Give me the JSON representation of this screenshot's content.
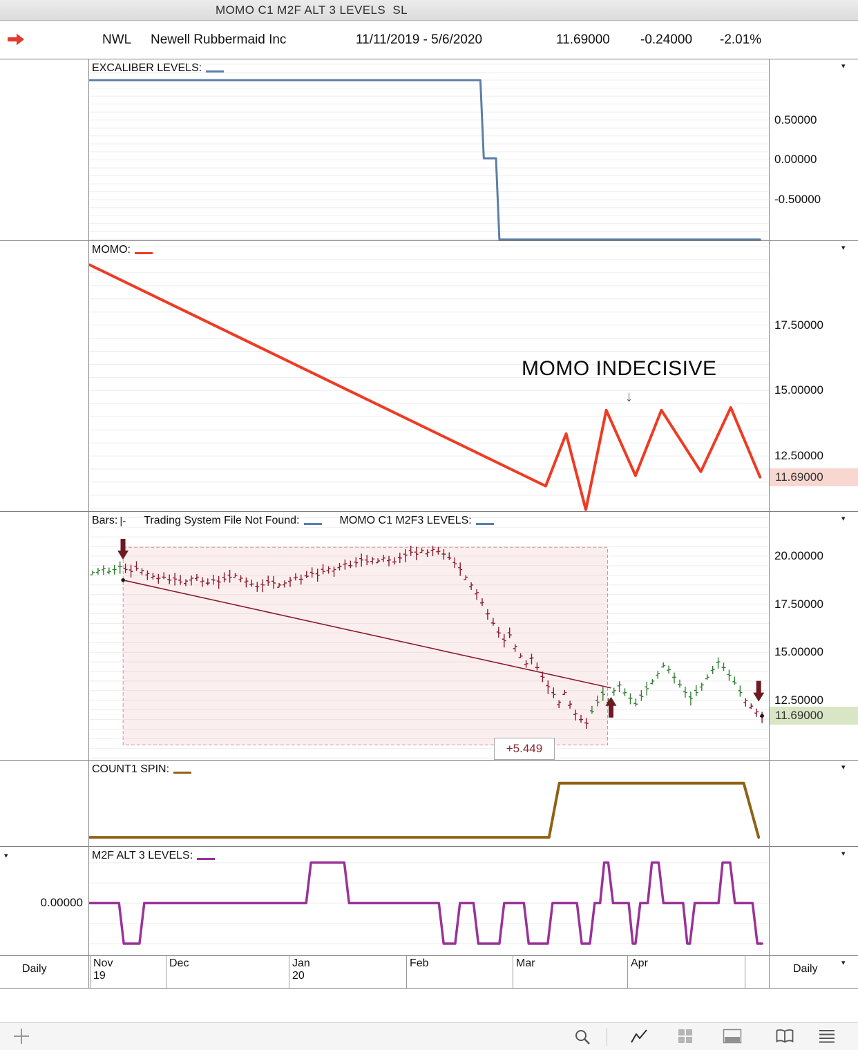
{
  "window": {
    "title": "MOMO C1 M2F ALT 3 LEVELS  SL"
  },
  "header": {
    "symbol": "NWL",
    "company": "Newell Rubbermaid Inc",
    "date_range": "11/11/2019 - 5/6/2020",
    "last": "11.69000",
    "change": "-0.24000",
    "change_pct": "-2.01%"
  },
  "panels": [
    {
      "name": "excaliber-levels",
      "segments": [
        {
          "text": "EXCALIBER LEVELS:",
          "swatch": "#5b7fa8"
        }
      ]
    },
    {
      "name": "momo",
      "segments": [
        {
          "text": "MOMO:",
          "swatch": "#ee3b24"
        }
      ],
      "annotation": {
        "text": "MOMO INDECISIVE",
        "arrow": "↓"
      }
    },
    {
      "name": "bars",
      "segments": [
        {
          "text": "Bars:",
          "glyph": "|-"
        },
        {
          "text": "Trading System File Not Found:",
          "swatch": "#5b7fa8"
        },
        {
          "text": "MOMO C1 M2F3 LEVELS:",
          "swatch": "#5b7fa8"
        }
      ],
      "gain_label": "+5.449"
    },
    {
      "name": "count1-spin",
      "segments": [
        {
          "text": "COUNT1 SPIN:",
          "swatch": "#8f6315"
        }
      ]
    },
    {
      "name": "m2f-alt3-levels",
      "segments": [
        {
          "text": "M2F ALT 3 LEVELS:",
          "swatch": "#993399"
        }
      ]
    }
  ],
  "chart_data": [
    {
      "type": "line",
      "name": "excaliber-levels",
      "color": "#5b7fa8",
      "stroke": 3,
      "ylim": [
        -1.01,
        1.26
      ],
      "grid_step": 0.1,
      "yticks": [
        {
          "v": 0.5,
          "label": "0.50000"
        },
        {
          "v": 0.0,
          "label": "0.00000"
        },
        {
          "v": -0.5,
          "label": "-0.50000"
        }
      ],
      "points": [
        [
          0.002,
          1.0
        ],
        [
          0.576,
          1.0
        ],
        [
          0.581,
          0.02
        ],
        [
          0.599,
          0.02
        ],
        [
          0.604,
          -1.0
        ],
        [
          0.987,
          -1.0
        ]
      ]
    },
    {
      "type": "line",
      "name": "momo",
      "color": "#ee3b24",
      "stroke": 4,
      "ylim": [
        10.39,
        20.71
      ],
      "grid_step": 0.5,
      "yticks": [
        {
          "v": 17.5,
          "label": "17.50000"
        },
        {
          "v": 15.0,
          "label": "15.00000"
        },
        {
          "v": 12.5,
          "label": "12.50000"
        }
      ],
      "badge": {
        "v": 11.69,
        "label": "11.69000",
        "bg": "#f8d7d0"
      },
      "points": [
        [
          0.002,
          19.8
        ],
        [
          0.672,
          11.35
        ],
        [
          0.702,
          13.35
        ],
        [
          0.731,
          10.45
        ],
        [
          0.761,
          14.25
        ],
        [
          0.804,
          11.75
        ],
        [
          0.842,
          14.25
        ],
        [
          0.9,
          11.9
        ],
        [
          0.944,
          14.35
        ],
        [
          0.987,
          11.69
        ]
      ]
    },
    {
      "type": "bars",
      "name": "price-bars",
      "ylim": [
        9.4,
        22.3
      ],
      "grid_step": 0.5,
      "yticks": [
        {
          "v": 20.0,
          "label": "20.00000"
        },
        {
          "v": 17.5,
          "label": "17.50000"
        },
        {
          "v": 15.0,
          "label": "15.00000"
        },
        {
          "v": 12.5,
          "label": "12.50000"
        }
      ],
      "badge": {
        "v": 11.69,
        "label": "11.69000",
        "bg": "#d9e6c5"
      },
      "up_color": "#2f7d32",
      "down_color": "#8c1b2c",
      "phases": [
        {
          "from": 0,
          "c": "up"
        },
        {
          "from": 6,
          "c": "down"
        },
        {
          "from": 91,
          "c": "up"
        },
        {
          "from": 119,
          "c": "down"
        }
      ],
      "closes": [
        19.15,
        19.25,
        19.35,
        19.2,
        19.3,
        19.45,
        19.3,
        19.2,
        19.35,
        19.25,
        19.1,
        18.95,
        18.85,
        18.9,
        18.75,
        18.8,
        18.65,
        18.7,
        18.85,
        18.9,
        18.7,
        18.6,
        18.75,
        18.65,
        18.8,
        18.9,
        19.0,
        18.85,
        18.7,
        18.55,
        18.4,
        18.5,
        18.65,
        18.6,
        18.5,
        18.6,
        18.75,
        18.9,
        18.8,
        18.95,
        19.1,
        19.0,
        19.2,
        19.35,
        19.3,
        19.45,
        19.6,
        19.5,
        19.65,
        19.8,
        19.7,
        19.85,
        19.75,
        19.9,
        19.8,
        19.7,
        19.9,
        20.05,
        20.2,
        20.1,
        20.3,
        20.2,
        20.35,
        20.25,
        20.1,
        19.9,
        19.6,
        19.3,
        18.9,
        18.5,
        18.1,
        17.6,
        17.0,
        16.5,
        16.0,
        15.6,
        15.9,
        15.3,
        14.8,
        14.4,
        14.7,
        14.2,
        13.7,
        13.2,
        12.8,
        12.4,
        12.9,
        12.3,
        11.8,
        11.5,
        11.3,
        11.9,
        12.4,
        12.8,
        12.5,
        13.0,
        13.3,
        12.9,
        12.6,
        12.3,
        12.7,
        13.1,
        13.5,
        13.9,
        14.3,
        14.1,
        13.7,
        13.3,
        12.9,
        12.6,
        12.9,
        13.3,
        13.7,
        14.1,
        14.5,
        14.2,
        13.8,
        13.4,
        12.9,
        12.5,
        12.2,
        11.9,
        11.69
      ],
      "region": {
        "x1": 0.051,
        "x2": 0.763,
        "v1": 20.46,
        "v2": 10.18
      },
      "trendline": {
        "x1": 0.051,
        "v1": 18.75,
        "x2": 0.768,
        "v2": 13.14
      },
      "arrows": [
        {
          "dir": "down",
          "x": 0.0508,
          "v": 19.82
        },
        {
          "dir": "up",
          "x": 0.768,
          "v": 12.68
        },
        {
          "dir": "down",
          "x": 0.985,
          "v": 12.43
        }
      ],
      "last_dot": true
    },
    {
      "type": "line",
      "name": "count1-spin",
      "color": "#8f6315",
      "stroke": 4,
      "ylim": [
        -0.165,
        1.418
      ],
      "points": [
        [
          0.002,
          0
        ],
        [
          0.677,
          0
        ],
        [
          0.692,
          1
        ],
        [
          0.963,
          1
        ],
        [
          0.985,
          0
        ]
      ]
    },
    {
      "type": "line",
      "name": "m2f-alt3-levels",
      "color": "#993399",
      "stroke": 3.5,
      "ylim": [
        -1.29,
        1.39
      ],
      "grid_step": 0.5,
      "left_tick": {
        "v": 0,
        "label": "0.00000"
      },
      "points": [
        [
          0.002,
          0
        ],
        [
          0.045,
          0
        ],
        [
          0.052,
          -1
        ],
        [
          0.075,
          -1
        ],
        [
          0.082,
          0
        ],
        [
          0.32,
          0
        ],
        [
          0.327,
          1
        ],
        [
          0.376,
          1
        ],
        [
          0.383,
          0
        ],
        [
          0.515,
          0
        ],
        [
          0.522,
          -1
        ],
        [
          0.539,
          -1
        ],
        [
          0.546,
          0
        ],
        [
          0.566,
          0
        ],
        [
          0.573,
          -1
        ],
        [
          0.604,
          -1
        ],
        [
          0.611,
          0
        ],
        [
          0.64,
          0
        ],
        [
          0.647,
          -1
        ],
        [
          0.675,
          -1
        ],
        [
          0.682,
          0
        ],
        [
          0.718,
          0
        ],
        [
          0.725,
          -1
        ],
        [
          0.737,
          -1
        ],
        [
          0.744,
          0
        ],
        [
          0.752,
          0
        ],
        [
          0.758,
          1
        ],
        [
          0.764,
          1
        ],
        [
          0.771,
          0
        ],
        [
          0.794,
          0
        ],
        [
          0.8,
          -1
        ],
        [
          0.804,
          -1
        ],
        [
          0.811,
          0
        ],
        [
          0.822,
          0
        ],
        [
          0.828,
          1
        ],
        [
          0.838,
          1
        ],
        [
          0.845,
          0
        ],
        [
          0.874,
          0
        ],
        [
          0.88,
          -1
        ],
        [
          0.884,
          -1
        ],
        [
          0.891,
          0
        ],
        [
          0.926,
          0
        ],
        [
          0.932,
          1
        ],
        [
          0.943,
          1
        ],
        [
          0.95,
          0
        ],
        [
          0.976,
          0
        ],
        [
          0.983,
          -1
        ],
        [
          0.99,
          -1
        ]
      ]
    }
  ],
  "xaxis": {
    "left_label": "Daily",
    "right_label": "Daily",
    "ticks": [
      {
        "x": 0.002,
        "l1": "Nov",
        "l2": "19"
      },
      {
        "x": 0.114,
        "l1": "Dec"
      },
      {
        "x": 0.294,
        "l1": "Jan",
        "l2": "20"
      },
      {
        "x": 0.467,
        "l1": "Feb"
      },
      {
        "x": 0.623,
        "l1": "Mar"
      },
      {
        "x": 0.792,
        "l1": "Apr"
      },
      {
        "x": 0.964
      }
    ]
  },
  "toolbar": {
    "icons": [
      "plus",
      "magnifier",
      "line-chart",
      "grid",
      "bottom-panel",
      "book",
      "menu"
    ]
  }
}
